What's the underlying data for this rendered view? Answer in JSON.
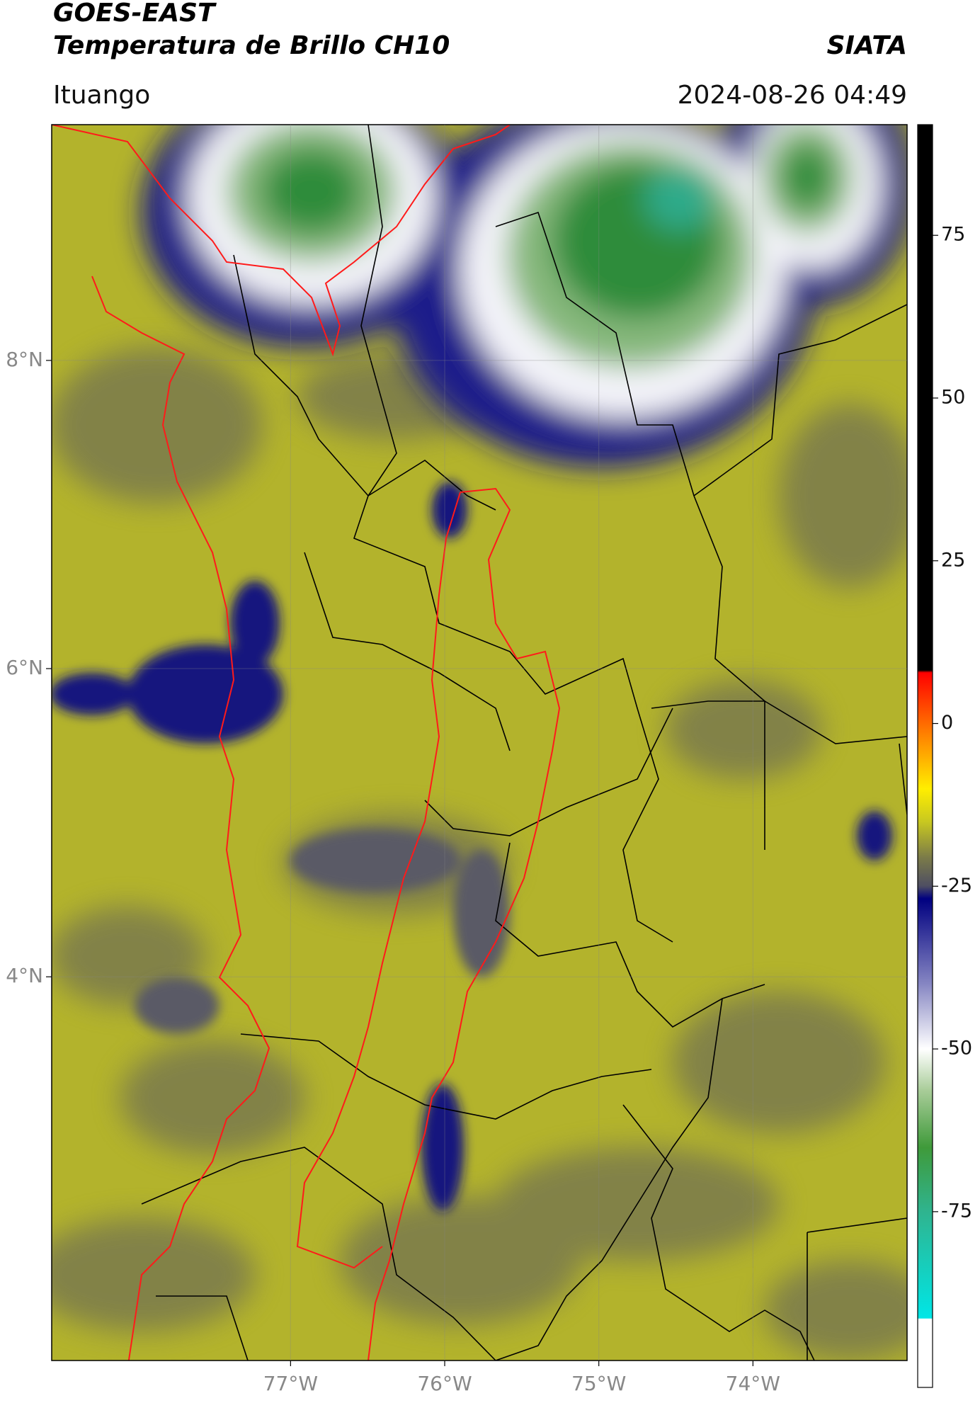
{
  "header": {
    "title": "GOES-EAST",
    "subtitle": "Temperatura de Brillo CH10",
    "source": "SIATA",
    "location": "Ituango",
    "datetime": "2024-08-26 04:49"
  },
  "map": {
    "lonlim": [
      -78.55,
      -73.0
    ],
    "latlim": [
      1.51,
      9.53
    ],
    "grid": true,
    "lonticks": [
      {
        "value": -77,
        "label": "77°W"
      },
      {
        "value": -76,
        "label": "76°W"
      },
      {
        "value": -75,
        "label": "75°W"
      },
      {
        "value": -74,
        "label": "74°W"
      }
    ],
    "latticks": [
      {
        "value": 8,
        "label": "8°N"
      },
      {
        "value": 6,
        "label": "6°N"
      },
      {
        "value": 4,
        "label": "4°N"
      }
    ]
  },
  "colorbar": {
    "lim": [
      -102,
      92
    ],
    "ticks": [
      -75,
      -50,
      -25,
      0,
      25,
      50,
      75
    ]
  }
}
